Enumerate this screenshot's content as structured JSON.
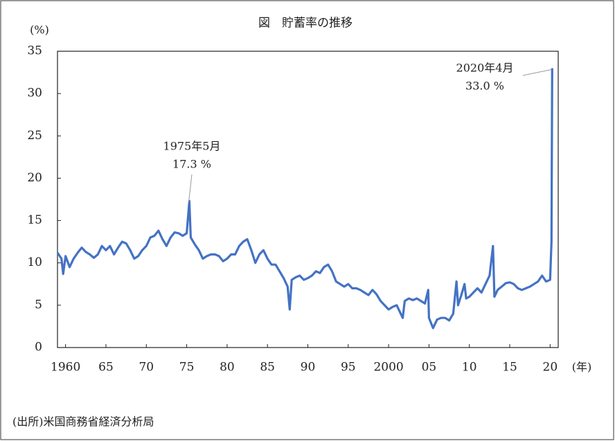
{
  "chart_data": {
    "type": "line",
    "title": "図　貯蓄率の推移",
    "y_label": "(%)",
    "x_label": "(年)",
    "source": "(出所)米国商務省経済分析局",
    "annotations": [
      {
        "text": "1975年5月",
        "value_text": "17.3 %",
        "x": 1975.33,
        "y": 17.3
      },
      {
        "text": "2020年4月",
        "value_text": "33.0 %",
        "x": 2020.25,
        "y": 33.0
      }
    ],
    "xlim": [
      1959,
      2021
    ],
    "ylim": [
      0,
      35
    ],
    "yticks": [
      0,
      5,
      10,
      15,
      20,
      25,
      30,
      35
    ],
    "xticks": [
      1960,
      {
        "value": 1965,
        "label": "65"
      },
      {
        "value": 1970,
        "label": "70"
      },
      {
        "value": 1975,
        "label": "75"
      },
      {
        "value": 1980,
        "label": "80"
      },
      {
        "value": 1985,
        "label": "85"
      },
      {
        "value": 1990,
        "label": "90"
      },
      {
        "value": 1995,
        "label": "95"
      },
      2000,
      {
        "value": 2005,
        "label": "05"
      },
      {
        "value": 2010,
        "label": "10"
      },
      {
        "value": 2015,
        "label": "15"
      },
      {
        "value": 2020,
        "label": "20"
      }
    ],
    "grid": false,
    "series": [
      {
        "name": "貯蓄率",
        "color": "#4472c4",
        "x": [
          1959.0,
          1959.5,
          1959.7,
          1960.0,
          1960.5,
          1961.0,
          1961.5,
          1962.0,
          1962.5,
          1963.0,
          1963.5,
          1964.0,
          1964.5,
          1965.0,
          1965.5,
          1966.0,
          1966.5,
          1967.0,
          1967.5,
          1968.0,
          1968.5,
          1969.0,
          1969.5,
          1970.0,
          1970.5,
          1971.0,
          1971.5,
          1972.0,
          1972.5,
          1973.0,
          1973.5,
          1974.0,
          1974.5,
          1975.0,
          1975.33,
          1975.5,
          1976.0,
          1976.5,
          1977.0,
          1977.5,
          1978.0,
          1978.5,
          1979.0,
          1979.5,
          1980.0,
          1980.5,
          1981.0,
          1981.5,
          1982.0,
          1982.5,
          1983.0,
          1983.5,
          1984.0,
          1984.5,
          1985.0,
          1985.5,
          1986.0,
          1986.5,
          1987.0,
          1987.5,
          1987.75,
          1988.0,
          1988.5,
          1989.0,
          1989.5,
          1990.0,
          1990.5,
          1991.0,
          1991.5,
          1992.0,
          1992.5,
          1993.0,
          1993.5,
          1994.0,
          1994.5,
          1995.0,
          1995.5,
          1996.0,
          1996.5,
          1997.0,
          1997.5,
          1998.0,
          1998.5,
          1999.0,
          1999.5,
          2000.0,
          2000.5,
          2001.0,
          2001.75,
          2002.0,
          2002.5,
          2003.0,
          2003.5,
          2004.0,
          2004.5,
          2004.9,
          2005.0,
          2005.5,
          2006.0,
          2006.5,
          2007.0,
          2007.5,
          2008.0,
          2008.4,
          2008.6,
          2009.0,
          2009.4,
          2009.6,
          2010.0,
          2010.5,
          2011.0,
          2011.5,
          2012.0,
          2012.5,
          2012.92,
          2013.1,
          2013.5,
          2014.0,
          2014.5,
          2015.0,
          2015.5,
          2016.0,
          2016.5,
          2017.0,
          2017.5,
          2018.0,
          2018.5,
          2019.0,
          2019.5,
          2020.0,
          2020.17,
          2020.25
        ],
        "values": [
          11.2,
          10.5,
          8.7,
          10.8,
          9.5,
          10.5,
          11.2,
          11.8,
          11.3,
          11.0,
          10.6,
          11.0,
          12.0,
          11.5,
          12.0,
          11.0,
          11.8,
          12.5,
          12.3,
          11.5,
          10.5,
          10.8,
          11.5,
          12.0,
          13.0,
          13.2,
          13.8,
          12.8,
          12.0,
          13.0,
          13.6,
          13.5,
          13.2,
          13.5,
          17.3,
          13.0,
          12.2,
          11.5,
          10.5,
          10.8,
          11.0,
          11.0,
          10.8,
          10.2,
          10.5,
          11.0,
          11.0,
          12.0,
          12.5,
          12.8,
          11.5,
          10.0,
          11.0,
          11.5,
          10.5,
          9.8,
          9.8,
          9.0,
          8.2,
          7.2,
          4.5,
          8.0,
          8.3,
          8.5,
          8.0,
          8.2,
          8.5,
          9.0,
          8.8,
          9.5,
          9.8,
          9.0,
          7.8,
          7.5,
          7.2,
          7.5,
          7.0,
          7.0,
          6.8,
          6.5,
          6.2,
          6.8,
          6.3,
          5.5,
          5.0,
          4.5,
          4.8,
          5.0,
          3.5,
          5.5,
          5.8,
          5.6,
          5.8,
          5.5,
          5.2,
          6.8,
          3.5,
          2.3,
          3.3,
          3.5,
          3.5,
          3.2,
          4.0,
          7.8,
          5.0,
          6.2,
          7.5,
          5.8,
          6.0,
          6.5,
          7.0,
          6.5,
          7.5,
          8.5,
          12.0,
          6.0,
          6.8,
          7.2,
          7.6,
          7.7,
          7.5,
          7.0,
          6.8,
          7.0,
          7.2,
          7.5,
          7.8,
          8.5,
          7.8,
          8.0,
          12.5,
          33.0
        ]
      }
    ]
  }
}
